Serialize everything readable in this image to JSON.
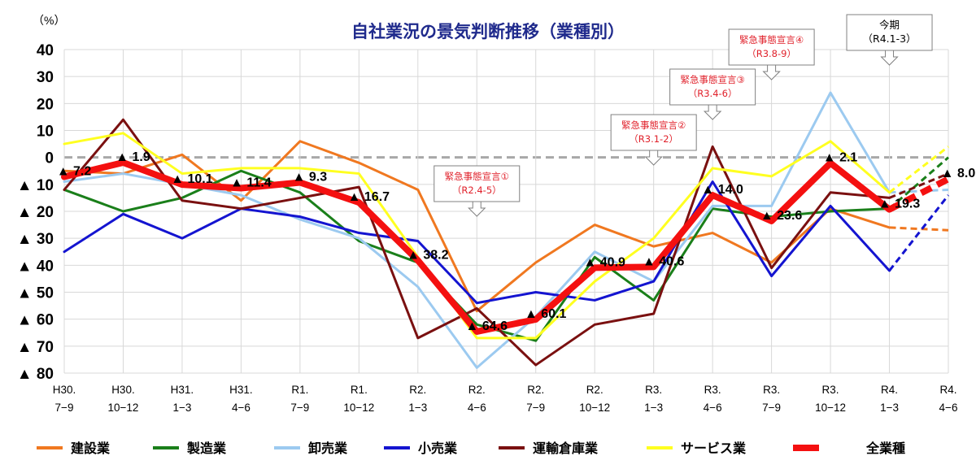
{
  "chart_data": {
    "type": "line",
    "title": "自社業況の景気判断推移（業種別）",
    "unit_label": "（%）",
    "x_categories": [
      [
        "H30.",
        "7−9"
      ],
      [
        "H30.",
        "10−12"
      ],
      [
        "H31.",
        "1−3"
      ],
      [
        "H31.",
        "4−6"
      ],
      [
        "R1.",
        "7−9"
      ],
      [
        "R1.",
        "10−12"
      ],
      [
        "R2.",
        "1−3"
      ],
      [
        "R2.",
        "4−6"
      ],
      [
        "R2.",
        "7−9"
      ],
      [
        "R2.",
        "10−12"
      ],
      [
        "R3.",
        "1−3"
      ],
      [
        "R3.",
        "4−6"
      ],
      [
        "R3.",
        "7−9"
      ],
      [
        "R3.",
        "10−12"
      ],
      [
        "R4.",
        "1−3"
      ],
      [
        "R4.",
        "4−6"
      ]
    ],
    "y_ticks": [
      {
        "value": 40,
        "label": "40"
      },
      {
        "value": 30,
        "label": "30"
      },
      {
        "value": 20,
        "label": "20"
      },
      {
        "value": 10,
        "label": "10"
      },
      {
        "value": 0,
        "label": "0"
      },
      {
        "value": -10,
        "label": "▲ 10"
      },
      {
        "value": -20,
        "label": "▲ 20"
      },
      {
        "value": -30,
        "label": "▲ 30"
      },
      {
        "value": -40,
        "label": "▲ 40"
      },
      {
        "value": -50,
        "label": "▲ 50"
      },
      {
        "value": -60,
        "label": "▲ 60"
      },
      {
        "value": -70,
        "label": "▲ 70"
      },
      {
        "value": -80,
        "label": "▲ 80"
      }
    ],
    "ylim": [
      -80,
      40
    ],
    "grid": true,
    "series": [
      {
        "name": "建設業",
        "color": "#f07820",
        "width": 3,
        "values": [
          -5,
          -6,
          1,
          -16,
          6,
          -2,
          -12,
          -57,
          -39,
          -25,
          -33,
          -28,
          -39,
          -19,
          -26,
          -27
        ],
        "forecast_from": 14
      },
      {
        "name": "製造業",
        "color": "#1a7f1a",
        "width": 3,
        "values": [
          -12,
          -20,
          -15,
          -5,
          -13,
          -31,
          -39,
          -62,
          -68,
          -37,
          -53,
          -19,
          -22,
          -20,
          -19,
          0
        ],
        "forecast_from": 14
      },
      {
        "name": "卸売業",
        "color": "#9ccaf0",
        "width": 3,
        "values": [
          -9,
          -6,
          -10,
          -14,
          -23,
          -30,
          -48,
          -78,
          -59,
          -35,
          -46,
          -18,
          -18,
          24,
          -13,
          -12
        ],
        "forecast_from": 14
      },
      {
        "name": "小売業",
        "color": "#1414d0",
        "width": 3,
        "values": [
          -35,
          -21,
          -30,
          -19,
          -22,
          -28,
          -31,
          -54,
          -50,
          -53,
          -46,
          -9,
          -44,
          -18,
          -42,
          -14
        ],
        "forecast_from": 14
      },
      {
        "name": "運輸倉庫業",
        "color": "#7a1010",
        "width": 3,
        "values": [
          -12,
          14,
          -16,
          -19,
          -15,
          -11,
          -67,
          -56,
          -77,
          -62,
          -58,
          4,
          -41,
          -13,
          -15,
          -6
        ],
        "forecast_from": 14
      },
      {
        "name": "サービス業",
        "color": "#ffff20",
        "width": 3,
        "values": [
          5,
          9,
          -6,
          -4,
          -4,
          -6,
          -37,
          -67,
          -67,
          -46,
          -30,
          -4,
          -7,
          6,
          -13,
          4
        ],
        "forecast_from": 14
      },
      {
        "name": "全業種",
        "color": "#f41010",
        "width": 8,
        "values": [
          -7.2,
          -1.9,
          -10.1,
          -11.4,
          -9.3,
          -16.7,
          -38.2,
          -64.6,
          -60.1,
          -40.9,
          -40.6,
          -14.0,
          -23.6,
          -2.1,
          -19.3,
          -8.0
        ],
        "forecast_from": 14
      }
    ],
    "data_labels": [
      {
        "index": 0,
        "text": "▲ 7.2"
      },
      {
        "index": 1,
        "text": "▲ 1.9"
      },
      {
        "index": 2,
        "text": "▲ 10.1"
      },
      {
        "index": 3,
        "text": "▲ 11.4"
      },
      {
        "index": 4,
        "text": "▲ 9.3"
      },
      {
        "index": 5,
        "text": "▲ 16.7"
      },
      {
        "index": 6,
        "text": "▲ 38.2"
      },
      {
        "index": 7,
        "text": "▲ 64.6"
      },
      {
        "index": 8,
        "text": "▲ 60.1"
      },
      {
        "index": 9,
        "text": "▲ 40.9"
      },
      {
        "index": 10,
        "text": "▲ 40.6"
      },
      {
        "index": 11,
        "text": "▲ 14.0"
      },
      {
        "index": 12,
        "text": "▲ 23.6"
      },
      {
        "index": 13,
        "text": "▲ 2.1"
      },
      {
        "index": 14,
        "text": "▲ 19.3"
      },
      {
        "index": 15,
        "text": "▲ 8.0"
      }
    ],
    "callouts": [
      {
        "index": 7,
        "lines": [
          "緊急事態宣言①",
          "（R2.4-5）"
        ],
        "color": "red"
      },
      {
        "index": 10,
        "lines": [
          "緊急事態宣言②",
          "（R3.1-2）"
        ],
        "color": "red"
      },
      {
        "index": 11,
        "lines": [
          "緊急事態宣言③",
          "（R3.4-6）"
        ],
        "color": "red"
      },
      {
        "index": 12,
        "lines": [
          "緊急事態宣言④",
          "（R3.8-9）"
        ],
        "color": "red"
      },
      {
        "index": 14,
        "lines": [
          "今期",
          "（R4.1-3）"
        ],
        "color": "black"
      }
    ],
    "legend_position": "bottom"
  }
}
